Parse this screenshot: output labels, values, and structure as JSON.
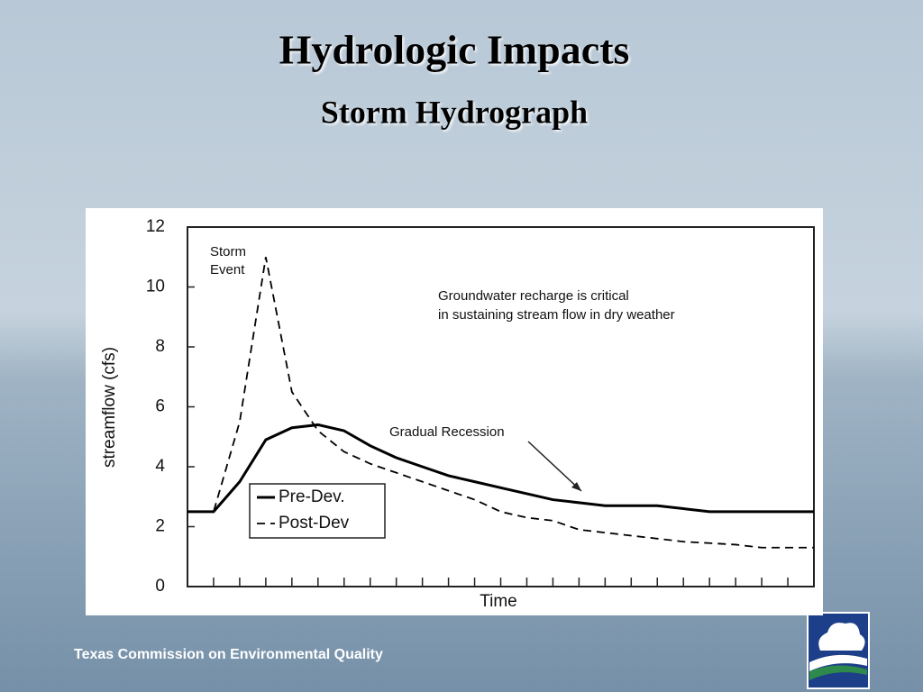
{
  "slide": {
    "title": "Hydrologic Impacts",
    "subtitle": "Storm Hydrograph",
    "footer": "Texas Commission on Environmental Quality"
  },
  "chart_data": {
    "type": "line",
    "xlabel": "Time",
    "ylabel": "streamflow (cfs)",
    "categories": [
      null,
      null,
      null,
      null,
      null,
      null,
      null,
      null,
      null,
      null,
      null,
      null,
      null,
      null,
      null,
      null,
      null,
      null,
      null,
      null,
      null,
      null,
      null,
      null,
      null
    ],
    "series": [
      {
        "name": "Pre-Dev.",
        "color": "#000000",
        "dash": "solid",
        "values": [
          2.5,
          2.5,
          3.5,
          4.9,
          5.3,
          5.4,
          5.2,
          4.7,
          4.3,
          4.0,
          3.7,
          3.5,
          3.3,
          3.1,
          2.9,
          2.8,
          2.7,
          2.7,
          2.7,
          2.6,
          2.5,
          2.5,
          2.5,
          2.5,
          2.5
        ]
      },
      {
        "name": "Post-Dev",
        "color": "#000000",
        "dash": "dashed",
        "values": [
          2.5,
          2.5,
          5.5,
          11.0,
          6.5,
          5.2,
          4.5,
          4.1,
          3.8,
          3.5,
          3.2,
          2.9,
          2.5,
          2.3,
          2.2,
          1.9,
          1.8,
          1.7,
          1.6,
          1.5,
          1.45,
          1.4,
          1.3,
          1.3,
          1.3
        ]
      }
    ],
    "ylim": [
      0,
      12
    ],
    "yticks": [
      0,
      2,
      4,
      6,
      8,
      10,
      12
    ],
    "grid": false,
    "legend": "lower left",
    "annotations": [
      {
        "lines": [
          "Storm",
          "Event"
        ]
      },
      {
        "lines": [
          "Groundwater recharge is critical",
          "in sustaining stream flow in dry weather"
        ]
      },
      {
        "lines": [
          "Gradual Recession"
        ]
      }
    ]
  }
}
